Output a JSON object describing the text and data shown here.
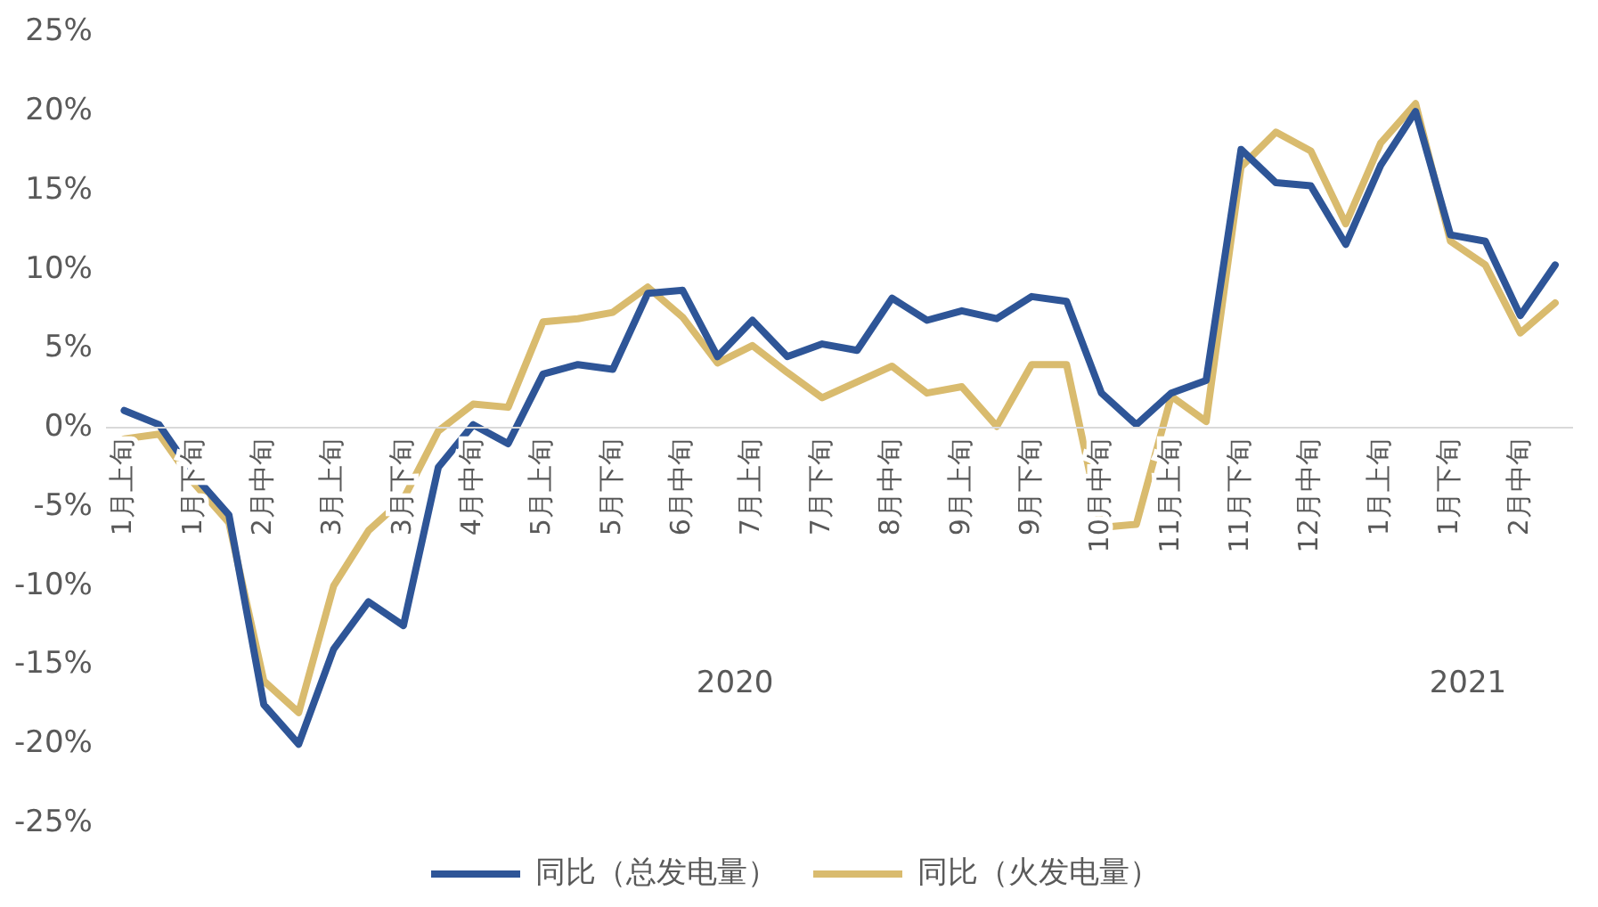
{
  "chart_data": {
    "type": "line",
    "categories": [
      "1月上旬",
      null,
      "1月下旬",
      null,
      "2月中旬",
      null,
      "3月上旬",
      null,
      "3月下旬",
      null,
      "4月中旬",
      null,
      "5月上旬",
      null,
      "5月下旬",
      null,
      "6月中旬",
      null,
      "7月上旬",
      null,
      "7月下旬",
      null,
      "8月中旬",
      null,
      "9月上旬",
      null,
      "9月下旬",
      null,
      "10月中旬",
      null,
      "11月上旬",
      null,
      "11月下旬",
      null,
      "12月中旬",
      null,
      "1月上旬",
      null,
      "1月下旬",
      null,
      "2月中旬",
      null
    ],
    "series": [
      {
        "name": "同比（总发电量）",
        "color": "#2e5597",
        "values": [
          1.1,
          0.2,
          -3,
          -5.5,
          -17.5,
          -20,
          -14,
          -11,
          -12.5,
          -2.5,
          0.2,
          -1,
          3.4,
          4,
          3.7,
          8.5,
          8.7,
          4.5,
          6.8,
          4.5,
          5.3,
          4.9,
          8.2,
          6.8,
          7.4,
          6.9,
          8.3,
          8,
          2.2,
          0.2,
          2.2,
          3,
          17.6,
          15.5,
          15.3,
          11.6,
          16.6,
          20,
          12.2,
          11.8,
          7.1,
          10.3
        ]
      },
      {
        "name": "同比（火发电量）",
        "color": "#d9bb6e",
        "values": [
          -0.7,
          -0.4,
          -3.5,
          -6,
          -16,
          -18,
          -10,
          -6.5,
          -4.5,
          -0.2,
          1.5,
          1.3,
          6.7,
          6.9,
          7.3,
          8.9,
          7,
          4.1,
          5.2,
          3.5,
          1.9,
          2.9,
          3.9,
          2.2,
          2.6,
          0.1,
          4,
          4,
          -6.3,
          -6.1,
          2,
          0.4,
          16.5,
          18.7,
          17.5,
          12.9,
          18,
          20.5,
          11.8,
          10.3,
          6,
          7.9
        ]
      }
    ],
    "ylim": [
      -25,
      25
    ],
    "yticks": [
      {
        "value": -25,
        "label": "-25%"
      },
      {
        "value": -20,
        "label": "-20%"
      },
      {
        "value": -15,
        "label": "-15%"
      },
      {
        "value": -10,
        "label": "-10%"
      },
      {
        "value": -5,
        "label": "-5%"
      },
      {
        "value": 0,
        "label": "0%"
      },
      {
        "value": 5,
        "label": "5%"
      },
      {
        "value": 10,
        "label": "10%"
      },
      {
        "value": 15,
        "label": "15%"
      },
      {
        "value": 20,
        "label": "20%"
      },
      {
        "value": 25,
        "label": "25%"
      }
    ],
    "annotations": [
      "2020",
      "2021"
    ],
    "legend": "bottom",
    "marker": "none",
    "line_style": "solid"
  }
}
